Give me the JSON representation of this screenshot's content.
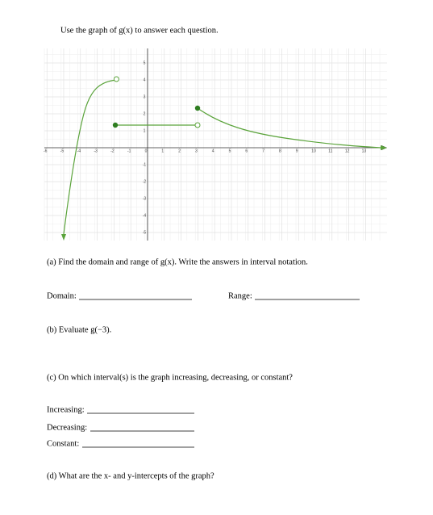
{
  "header": {
    "title": "Use the graph of g(x) to answer each question."
  },
  "graph": {
    "xticks": [
      -6,
      -5,
      -4,
      -3,
      -2,
      -1,
      0,
      1,
      2,
      3,
      4,
      5,
      6,
      7,
      8,
      9,
      10,
      11,
      12,
      13
    ],
    "yticks": [
      5,
      4,
      3,
      2,
      1,
      -1,
      -2,
      -3,
      -4,
      -5
    ]
  },
  "questions": {
    "a": {
      "prompt": "(a) Find the domain and range of g(x). Write the answers in interval notation.",
      "domain": "Domain:",
      "range": "Range:"
    },
    "b": {
      "prompt": "(b) Evaluate g(−3)."
    },
    "c": {
      "prompt": "(c) On which interval(s) is the graph increasing, decreasing, or constant?",
      "increasing": "Increasing:",
      "decreasing": "Decreasing:",
      "constant": "Constant:"
    },
    "d": {
      "prompt": "(d) What are the x- and y-intercepts of the graph?"
    }
  }
}
